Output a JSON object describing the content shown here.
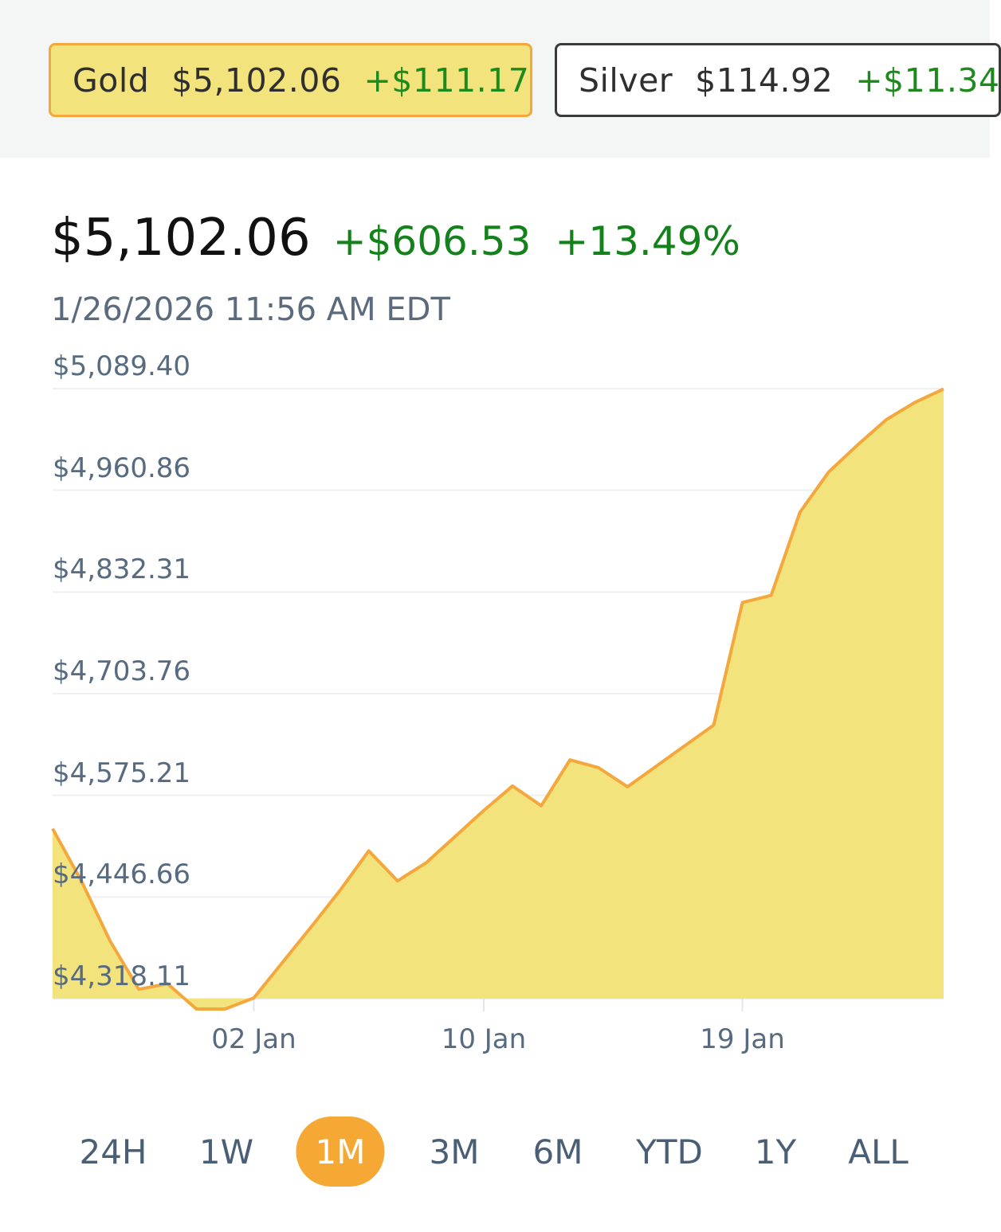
{
  "tickers": [
    {
      "name": "Gold",
      "price": "$5,102.06",
      "change": "+$111.17",
      "selected": true
    },
    {
      "name": "Silver",
      "price": "$114.92",
      "change": "+$11.34",
      "selected": false
    }
  ],
  "summary": {
    "price": "$5,102.06",
    "abs_change": "+$606.53",
    "pct_change": "+13.49%",
    "timestamp": "1/26/2026 11:56 AM EDT"
  },
  "colors": {
    "line": "#f4a73c",
    "fill": "#f3e37c",
    "positive": "#14821a",
    "active_range": "#f5a934"
  },
  "chart_data": {
    "type": "area",
    "y_ticks": [
      "$5,089.40",
      "$4,960.86",
      "$4,832.31",
      "$4,703.76",
      "$4,575.21",
      "$4,446.66",
      "$4,318.11"
    ],
    "y_tick_values": [
      5089.4,
      4960.86,
      4832.31,
      4703.76,
      4575.21,
      4446.66,
      4318.11
    ],
    "ylim": [
      4318.11,
      5089.4
    ],
    "x_ticks": [
      {
        "label": "02 Jan",
        "date": "2026-01-02"
      },
      {
        "label": "10 Jan",
        "date": "2026-01-10"
      },
      {
        "label": "19 Jan",
        "date": "2026-01-19"
      }
    ],
    "xlim": [
      "2025-12-26",
      "2026-01-26"
    ],
    "grid": true,
    "series": [
      {
        "x": [
          "2025-12-26",
          "2025-12-27",
          "2025-12-28",
          "2025-12-29",
          "2025-12-30",
          "2025-12-31",
          "2026-01-01",
          "2026-01-02",
          "2026-01-03",
          "2026-01-04",
          "2026-01-05",
          "2026-01-06",
          "2026-01-07",
          "2026-01-08",
          "2026-01-09",
          "2026-01-10",
          "2026-01-11",
          "2026-01-12",
          "2026-01-13",
          "2026-01-14",
          "2026-01-15",
          "2026-01-16",
          "2026-01-17",
          "2026-01-18",
          "2026-01-19",
          "2026-01-20",
          "2026-01-21",
          "2026-01-22",
          "2026-01-23",
          "2026-01-24",
          "2026-01-25",
          "2026-01-26"
        ],
        "y": [
          4533,
          4467,
          4391,
          4330,
          4337,
          4305,
          4305,
          4319,
          4364,
          4409,
          4455,
          4505,
          4467,
          4490,
          4523,
          4556,
          4587,
          4562,
          4620,
          4610,
          4586,
          4612,
          4638,
          4664,
          4819,
          4828,
          4933,
          4984,
          5018,
          5050,
          5072,
          5089
        ]
      }
    ]
  },
  "ranges": {
    "items": [
      "24H",
      "1W",
      "1M",
      "3M",
      "6M",
      "YTD",
      "1Y",
      "ALL"
    ],
    "active": "1M"
  }
}
